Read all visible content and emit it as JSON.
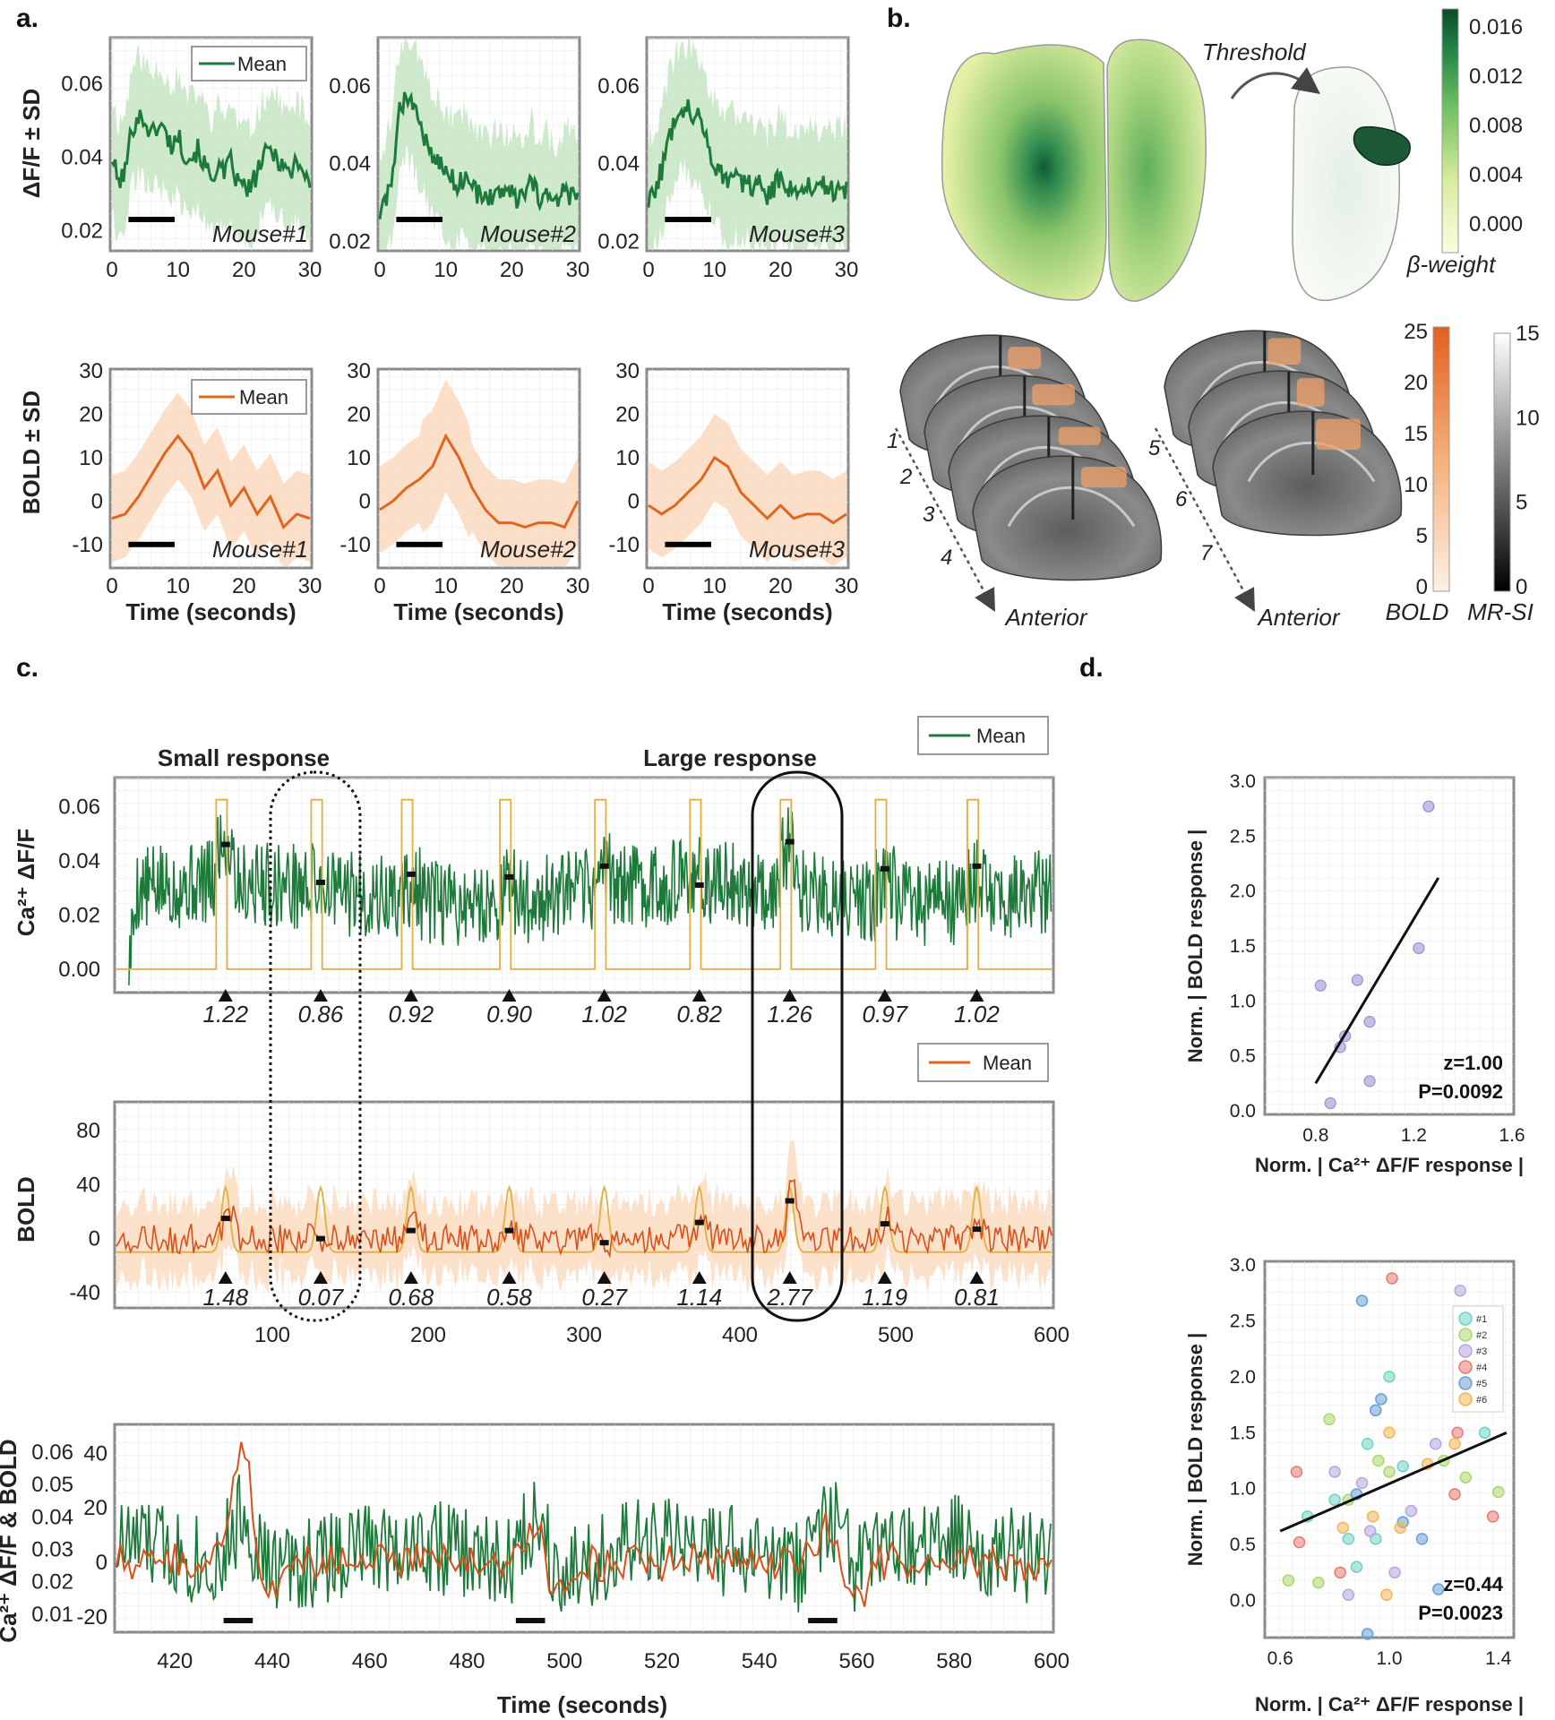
{
  "panel_labels": {
    "a": "a.",
    "b": "b.",
    "c": "c.",
    "d": "d."
  },
  "chart_data": [
    {
      "id": "a-calcium",
      "type": "line",
      "title": "",
      "xlabel": "",
      "ylabel": "ΔF/F ± SD",
      "xlim": [
        0,
        30
      ],
      "xticks": [
        "0",
        "10",
        "20",
        "30"
      ],
      "legend": "Mean",
      "color": "#1e7a3a",
      "series": [
        {
          "name": "Mouse#1",
          "ylim": [
            0.015,
            0.072
          ],
          "yticks": [
            "0.02",
            "0.04",
            "0.06"
          ],
          "x": [
            0,
            1,
            2,
            3,
            4,
            5,
            6,
            7,
            8,
            9,
            10,
            11,
            12,
            13,
            14,
            15,
            16,
            17,
            18,
            19,
            20,
            21,
            22,
            23,
            24,
            25,
            26,
            27,
            28,
            29,
            30
          ],
          "values": [
            0.04,
            0.033,
            0.036,
            0.048,
            0.051,
            0.05,
            0.046,
            0.049,
            0.047,
            0.043,
            0.046,
            0.041,
            0.04,
            0.042,
            0.038,
            0.034,
            0.038,
            0.035,
            0.039,
            0.033,
            0.032,
            0.031,
            0.036,
            0.04,
            0.042,
            0.04,
            0.038,
            0.035,
            0.04,
            0.036,
            0.033
          ]
        },
        {
          "name": "Mouse#2",
          "ylim": [
            0.018,
            0.072
          ],
          "yticks": [
            "0.02",
            "0.04",
            "0.06"
          ],
          "x": [
            0,
            1,
            2,
            3,
            4,
            5,
            6,
            7,
            8,
            9,
            10,
            11,
            12,
            13,
            14,
            15,
            16,
            17,
            18,
            19,
            20,
            21,
            22,
            23,
            24,
            25,
            26,
            27,
            28,
            29,
            30
          ],
          "values": [
            0.027,
            0.03,
            0.039,
            0.053,
            0.059,
            0.055,
            0.051,
            0.046,
            0.042,
            0.04,
            0.038,
            0.036,
            0.035,
            0.037,
            0.034,
            0.032,
            0.033,
            0.03,
            0.034,
            0.031,
            0.033,
            0.03,
            0.032,
            0.035,
            0.031,
            0.033,
            0.03,
            0.029,
            0.034,
            0.031,
            0.032
          ]
        },
        {
          "name": "Mouse#3",
          "ylim": [
            0.018,
            0.072
          ],
          "yticks": [
            "0.02",
            "0.04",
            "0.06"
          ],
          "x": [
            0,
            1,
            2,
            3,
            4,
            5,
            6,
            7,
            8,
            9,
            10,
            11,
            12,
            13,
            14,
            15,
            16,
            17,
            18,
            19,
            20,
            21,
            22,
            23,
            24,
            25,
            26,
            27,
            28,
            29,
            30
          ],
          "values": [
            0.03,
            0.034,
            0.038,
            0.046,
            0.052,
            0.055,
            0.054,
            0.053,
            0.05,
            0.045,
            0.04,
            0.038,
            0.036,
            0.038,
            0.034,
            0.036,
            0.033,
            0.035,
            0.032,
            0.034,
            0.037,
            0.033,
            0.035,
            0.032,
            0.036,
            0.034,
            0.033,
            0.035,
            0.032,
            0.034,
            0.033
          ]
        }
      ]
    },
    {
      "id": "a-bold",
      "type": "line",
      "xlabel": "Time (seconds)",
      "ylabel": "BOLD ± SD",
      "xlim": [
        0,
        30
      ],
      "ylim": [
        -15,
        30
      ],
      "xticks": [
        "0",
        "10",
        "20",
        "30"
      ],
      "yticks": [
        "30",
        "20",
        "10",
        "0",
        "-10"
      ],
      "legend": "Mean",
      "color": "#e0661f",
      "series": [
        {
          "name": "Mouse#1",
          "x": [
            0,
            2,
            4,
            6,
            8,
            10,
            12,
            14,
            16,
            18,
            20,
            22,
            24,
            26,
            28,
            30
          ],
          "values": [
            -4,
            -3,
            1,
            6,
            11,
            15,
            11,
            3,
            7,
            -1,
            3,
            -3,
            1,
            -6,
            -3,
            -4
          ]
        },
        {
          "name": "Mouse#2",
          "x": [
            0,
            2,
            4,
            6,
            8,
            10,
            12,
            14,
            16,
            18,
            20,
            22,
            24,
            26,
            28,
            30
          ],
          "values": [
            -2,
            0,
            3,
            5,
            8,
            15,
            10,
            3,
            -2,
            -5,
            -5,
            -6,
            -5,
            -5,
            -6,
            0
          ]
        },
        {
          "name": "Mouse#3",
          "x": [
            0,
            2,
            4,
            6,
            8,
            10,
            12,
            14,
            16,
            18,
            20,
            22,
            24,
            26,
            28,
            30
          ],
          "values": [
            -1,
            -3,
            -1,
            2,
            5,
            10,
            8,
            2,
            -1,
            -4,
            -1,
            -4,
            -3,
            -3,
            -5,
            -3
          ]
        }
      ]
    },
    {
      "id": "b-beta-colorbar",
      "type": "heatmap",
      "annotation": "Threshold",
      "colorbar_label": "β-weight",
      "colorbar_ticks": [
        "0.016",
        "0.012",
        "0.008",
        "0.004",
        "0.000"
      ],
      "range": [
        0,
        0.017
      ]
    },
    {
      "id": "b-bold-colorbars",
      "type": "heatmap",
      "slice_numbers": [
        "1",
        "2",
        "3",
        "4",
        "5",
        "6",
        "7"
      ],
      "direction_label": "Anterior",
      "bold_ticks": [
        "25",
        "20",
        "15",
        "10",
        "5",
        "0"
      ],
      "mrsi_ticks": [
        "15",
        "10",
        "5",
        "0"
      ],
      "bold_label": "BOLD",
      "mrsi_label": "MR-SI"
    },
    {
      "id": "c-calcium-long",
      "type": "line",
      "ylabel": "Ca²⁺ ΔF/F",
      "xlim": [
        0,
        600
      ],
      "ylim": [
        -0.008,
        0.07
      ],
      "yticks": [
        "0.06",
        "0.04",
        "0.02",
        "0.00"
      ],
      "legend": "Mean",
      "small_label": "Small response",
      "large_label": "Large response",
      "block_centers": [
        70,
        131,
        189,
        252,
        313,
        374,
        432,
        493,
        552
      ],
      "block_means": [
        0.046,
        0.032,
        0.035,
        0.034,
        0.038,
        0.031,
        0.047,
        0.037,
        0.038
      ],
      "responses": [
        "1.22",
        "0.86",
        "0.92",
        "0.90",
        "1.02",
        "0.82",
        "1.26",
        "0.97",
        "1.02"
      ]
    },
    {
      "id": "c-bold-long",
      "type": "line",
      "ylabel": "BOLD",
      "xlim": [
        0,
        600
      ],
      "ylim": [
        -50,
        100
      ],
      "yticks": [
        "80",
        "40",
        "0",
        "-40"
      ],
      "xticks": [
        "100",
        "200",
        "300",
        "400",
        "500",
        "600"
      ],
      "legend": "Mean",
      "block_means": [
        15,
        0,
        6,
        6,
        -3,
        12,
        28,
        11,
        7
      ],
      "responses": [
        "1.48",
        "0.07",
        "0.68",
        "0.58",
        "0.27",
        "1.14",
        "2.77",
        "1.19",
        "0.81"
      ]
    },
    {
      "id": "c-overlay",
      "type": "line",
      "ylabel": "Ca²⁺ ΔF/F & BOLD",
      "xlabel": "Time (seconds)",
      "xlim": [
        408,
        600
      ],
      "xticks": [
        "420",
        "440",
        "460",
        "480",
        "500",
        "520",
        "540",
        "560",
        "580",
        "600"
      ],
      "calcium_ticks": [
        "0.06",
        "0.05",
        "0.04",
        "0.03",
        "0.02",
        "0.01"
      ],
      "bold_ticks": [
        "40",
        "20",
        "0",
        "-20"
      ],
      "stim_onsets": [
        430,
        490,
        550
      ]
    },
    {
      "id": "d-mouse",
      "type": "scatter",
      "xlabel": "Norm. | Ca²⁺ ΔF/F response |",
      "ylabel": "Norm. | BOLD response |",
      "xlim": [
        0.6,
        1.6
      ],
      "ylim": [
        0,
        3
      ],
      "xticks": [
        "0.8",
        "1.2",
        "1.6"
      ],
      "yticks": [
        "3.0",
        "2.5",
        "2.0",
        "1.5",
        "1.0",
        "0.5",
        "0.0"
      ],
      "points": [
        [
          1.26,
          2.77
        ],
        [
          1.22,
          1.48
        ],
        [
          0.82,
          1.14
        ],
        [
          0.86,
          0.07
        ],
        [
          0.92,
          0.68
        ],
        [
          0.9,
          0.58
        ],
        [
          1.02,
          0.27
        ],
        [
          0.97,
          1.19
        ],
        [
          1.02,
          0.81
        ]
      ],
      "fit": [
        [
          0.8,
          0.25
        ],
        [
          1.3,
          2.12
        ]
      ],
      "z": "z=1.00",
      "p": "P=0.0092"
    },
    {
      "id": "d-all",
      "type": "scatter",
      "xlabel": "Norm. | Ca²⁺ ΔF/F response |",
      "ylabel": "Norm. | BOLD response |",
      "xlim": [
        0.55,
        1.45
      ],
      "ylim": [
        -0.3,
        3.0
      ],
      "xticks": [
        "0.6",
        "1.0",
        "1.4"
      ],
      "yticks": [
        "3.0",
        "2.5",
        "2.0",
        "1.5",
        "1.0",
        "0.5",
        "0.0"
      ],
      "legend": [
        "#1",
        "#2",
        "#3",
        "#4",
        "#5",
        "#6"
      ],
      "series_colors": [
        "#6fd3c4",
        "#a9d86e",
        "#b7a6df",
        "#e57b74",
        "#6a9fd6",
        "#f2b654"
      ],
      "points": [
        {
          "s": 0,
          "x": 0.7,
          "y": 0.75
        },
        {
          "s": 0,
          "x": 0.88,
          "y": 0.3
        },
        {
          "s": 0,
          "x": 0.92,
          "y": 1.4
        },
        {
          "s": 0,
          "x": 0.95,
          "y": 0.55
        },
        {
          "s": 0,
          "x": 1.0,
          "y": 2.0
        },
        {
          "s": 0,
          "x": 1.05,
          "y": 1.2
        },
        {
          "s": 0,
          "x": 1.35,
          "y": 1.5
        },
        {
          "s": 0,
          "x": 0.85,
          "y": 0.55
        },
        {
          "s": 0,
          "x": 0.8,
          "y": 0.9
        },
        {
          "s": 1,
          "x": 0.63,
          "y": 0.18
        },
        {
          "s": 1,
          "x": 0.78,
          "y": 1.62
        },
        {
          "s": 1,
          "x": 0.85,
          "y": 0.9
        },
        {
          "s": 1,
          "x": 0.96,
          "y": 1.25
        },
        {
          "s": 1,
          "x": 1.0,
          "y": 1.15
        },
        {
          "s": 1,
          "x": 1.2,
          "y": 1.25
        },
        {
          "s": 1,
          "x": 1.28,
          "y": 1.1
        },
        {
          "s": 1,
          "x": 1.4,
          "y": 0.97
        },
        {
          "s": 1,
          "x": 0.74,
          "y": 0.16
        },
        {
          "s": 2,
          "x": 0.85,
          "y": 0.05
        },
        {
          "s": 2,
          "x": 0.8,
          "y": 1.15
        },
        {
          "s": 2,
          "x": 0.93,
          "y": 0.62
        },
        {
          "s": 2,
          "x": 1.02,
          "y": 0.25
        },
        {
          "s": 2,
          "x": 1.08,
          "y": 0.8
        },
        {
          "s": 2,
          "x": 1.17,
          "y": 1.4
        },
        {
          "s": 2,
          "x": 1.26,
          "y": 2.77
        },
        {
          "s": 2,
          "x": 0.9,
          "y": 1.05
        },
        {
          "s": 3,
          "x": 0.66,
          "y": 1.15
        },
        {
          "s": 3,
          "x": 0.67,
          "y": 0.52
        },
        {
          "s": 3,
          "x": 0.82,
          "y": 0.25
        },
        {
          "s": 3,
          "x": 1.01,
          "y": 2.88
        },
        {
          "s": 3,
          "x": 1.25,
          "y": 1.5
        },
        {
          "s": 3,
          "x": 1.24,
          "y": 0.95
        },
        {
          "s": 3,
          "x": 1.38,
          "y": 0.75
        },
        {
          "s": 4,
          "x": 0.9,
          "y": 2.68
        },
        {
          "s": 4,
          "x": 0.95,
          "y": 1.7
        },
        {
          "s": 4,
          "x": 0.97,
          "y": 1.8
        },
        {
          "s": 4,
          "x": 1.05,
          "y": 0.7
        },
        {
          "s": 4,
          "x": 1.12,
          "y": 0.55
        },
        {
          "s": 4,
          "x": 1.18,
          "y": 0.1
        },
        {
          "s": 4,
          "x": 0.92,
          "y": -0.3
        },
        {
          "s": 4,
          "x": 0.88,
          "y": 0.95
        },
        {
          "s": 5,
          "x": 0.83,
          "y": 0.65
        },
        {
          "s": 5,
          "x": 0.94,
          "y": 0.75
        },
        {
          "s": 5,
          "x": 1.0,
          "y": 1.5
        },
        {
          "s": 5,
          "x": 1.04,
          "y": 0.65
        },
        {
          "s": 5,
          "x": 1.14,
          "y": 1.22
        },
        {
          "s": 5,
          "x": 1.24,
          "y": 1.4
        },
        {
          "s": 5,
          "x": 0.99,
          "y": 0.05
        }
      ],
      "fit": [
        [
          0.6,
          0.62
        ],
        [
          1.43,
          1.5
        ]
      ],
      "z": "z=0.44",
      "p": "P=0.0023"
    }
  ]
}
